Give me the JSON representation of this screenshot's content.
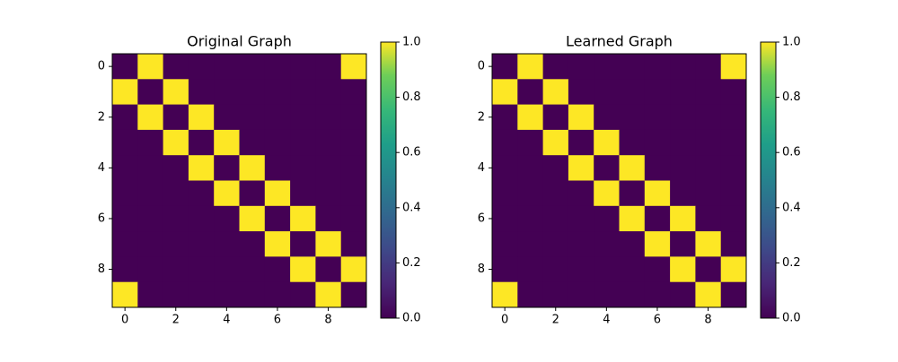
{
  "chart_data": [
    {
      "type": "heatmap",
      "title": "Original Graph",
      "colormap": "viridis",
      "matrix": [
        [
          0,
          1,
          0,
          0,
          0,
          0,
          0,
          0,
          0,
          1
        ],
        [
          1,
          0,
          1,
          0,
          0,
          0,
          0,
          0,
          0,
          0
        ],
        [
          0,
          1,
          0,
          1,
          0,
          0,
          0,
          0,
          0,
          0
        ],
        [
          0,
          0,
          1,
          0,
          1,
          0,
          0,
          0,
          0,
          0
        ],
        [
          0,
          0,
          0,
          1,
          0,
          1,
          0,
          0,
          0,
          0
        ],
        [
          0,
          0,
          0,
          0,
          1,
          0,
          1,
          0,
          0,
          0
        ],
        [
          0,
          0,
          0,
          0,
          0,
          1,
          0,
          1,
          0,
          0
        ],
        [
          0,
          0,
          0,
          0,
          0,
          0,
          1,
          0,
          1,
          0
        ],
        [
          0,
          0,
          0,
          0,
          0,
          0,
          0,
          1,
          0,
          1
        ],
        [
          1,
          0,
          0,
          0,
          0,
          0,
          0,
          0,
          1,
          0
        ]
      ],
      "xlim": [
        -0.5,
        9.5
      ],
      "ylim": [
        9.5,
        -0.5
      ],
      "xticks": [
        0,
        2,
        4,
        6,
        8
      ],
      "yticks": [
        0,
        2,
        4,
        6,
        8
      ],
      "clim": [
        0,
        1
      ],
      "cticks": [
        {
          "value": 0,
          "label": "0.0"
        },
        {
          "value": 0.2,
          "label": "0.2"
        },
        {
          "value": 0.4,
          "label": "0.4"
        },
        {
          "value": 0.6,
          "label": "0.6"
        },
        {
          "value": 0.8,
          "label": "0.8"
        },
        {
          "value": 1,
          "label": "1.0"
        }
      ]
    },
    {
      "type": "heatmap",
      "title": "Learned Graph",
      "colormap": "viridis",
      "matrix": [
        [
          0,
          1,
          0,
          0,
          0,
          0,
          0,
          0,
          0,
          1
        ],
        [
          1,
          0,
          1,
          0,
          0,
          0,
          0,
          0,
          0,
          0
        ],
        [
          0,
          1,
          0,
          1,
          0,
          0,
          0,
          0,
          0,
          0
        ],
        [
          0,
          0,
          1,
          0,
          1,
          0,
          0,
          0,
          0,
          0
        ],
        [
          0,
          0,
          0,
          1,
          0,
          1,
          0,
          0,
          0,
          0
        ],
        [
          0,
          0,
          0,
          0,
          1,
          0,
          1,
          0,
          0,
          0
        ],
        [
          0,
          0,
          0,
          0,
          0,
          1,
          0,
          1,
          0,
          0
        ],
        [
          0,
          0,
          0,
          0,
          0,
          0,
          1,
          0,
          1,
          0
        ],
        [
          0,
          0,
          0,
          0,
          0,
          0,
          0,
          1,
          0,
          1
        ],
        [
          1,
          0,
          0,
          0,
          0,
          0,
          0,
          0,
          1,
          0
        ]
      ],
      "xlim": [
        -0.5,
        9.5
      ],
      "ylim": [
        9.5,
        -0.5
      ],
      "xticks": [
        0,
        2,
        4,
        6,
        8
      ],
      "yticks": [
        0,
        2,
        4,
        6,
        8
      ],
      "clim": [
        0,
        1
      ],
      "cticks": [
        {
          "value": 0,
          "label": "0.0"
        },
        {
          "value": 0.2,
          "label": "0.2"
        },
        {
          "value": 0.4,
          "label": "0.4"
        },
        {
          "value": 0.6,
          "label": "0.6"
        },
        {
          "value": 0.8,
          "label": "0.8"
        },
        {
          "value": 1,
          "label": "1.0"
        }
      ]
    }
  ]
}
